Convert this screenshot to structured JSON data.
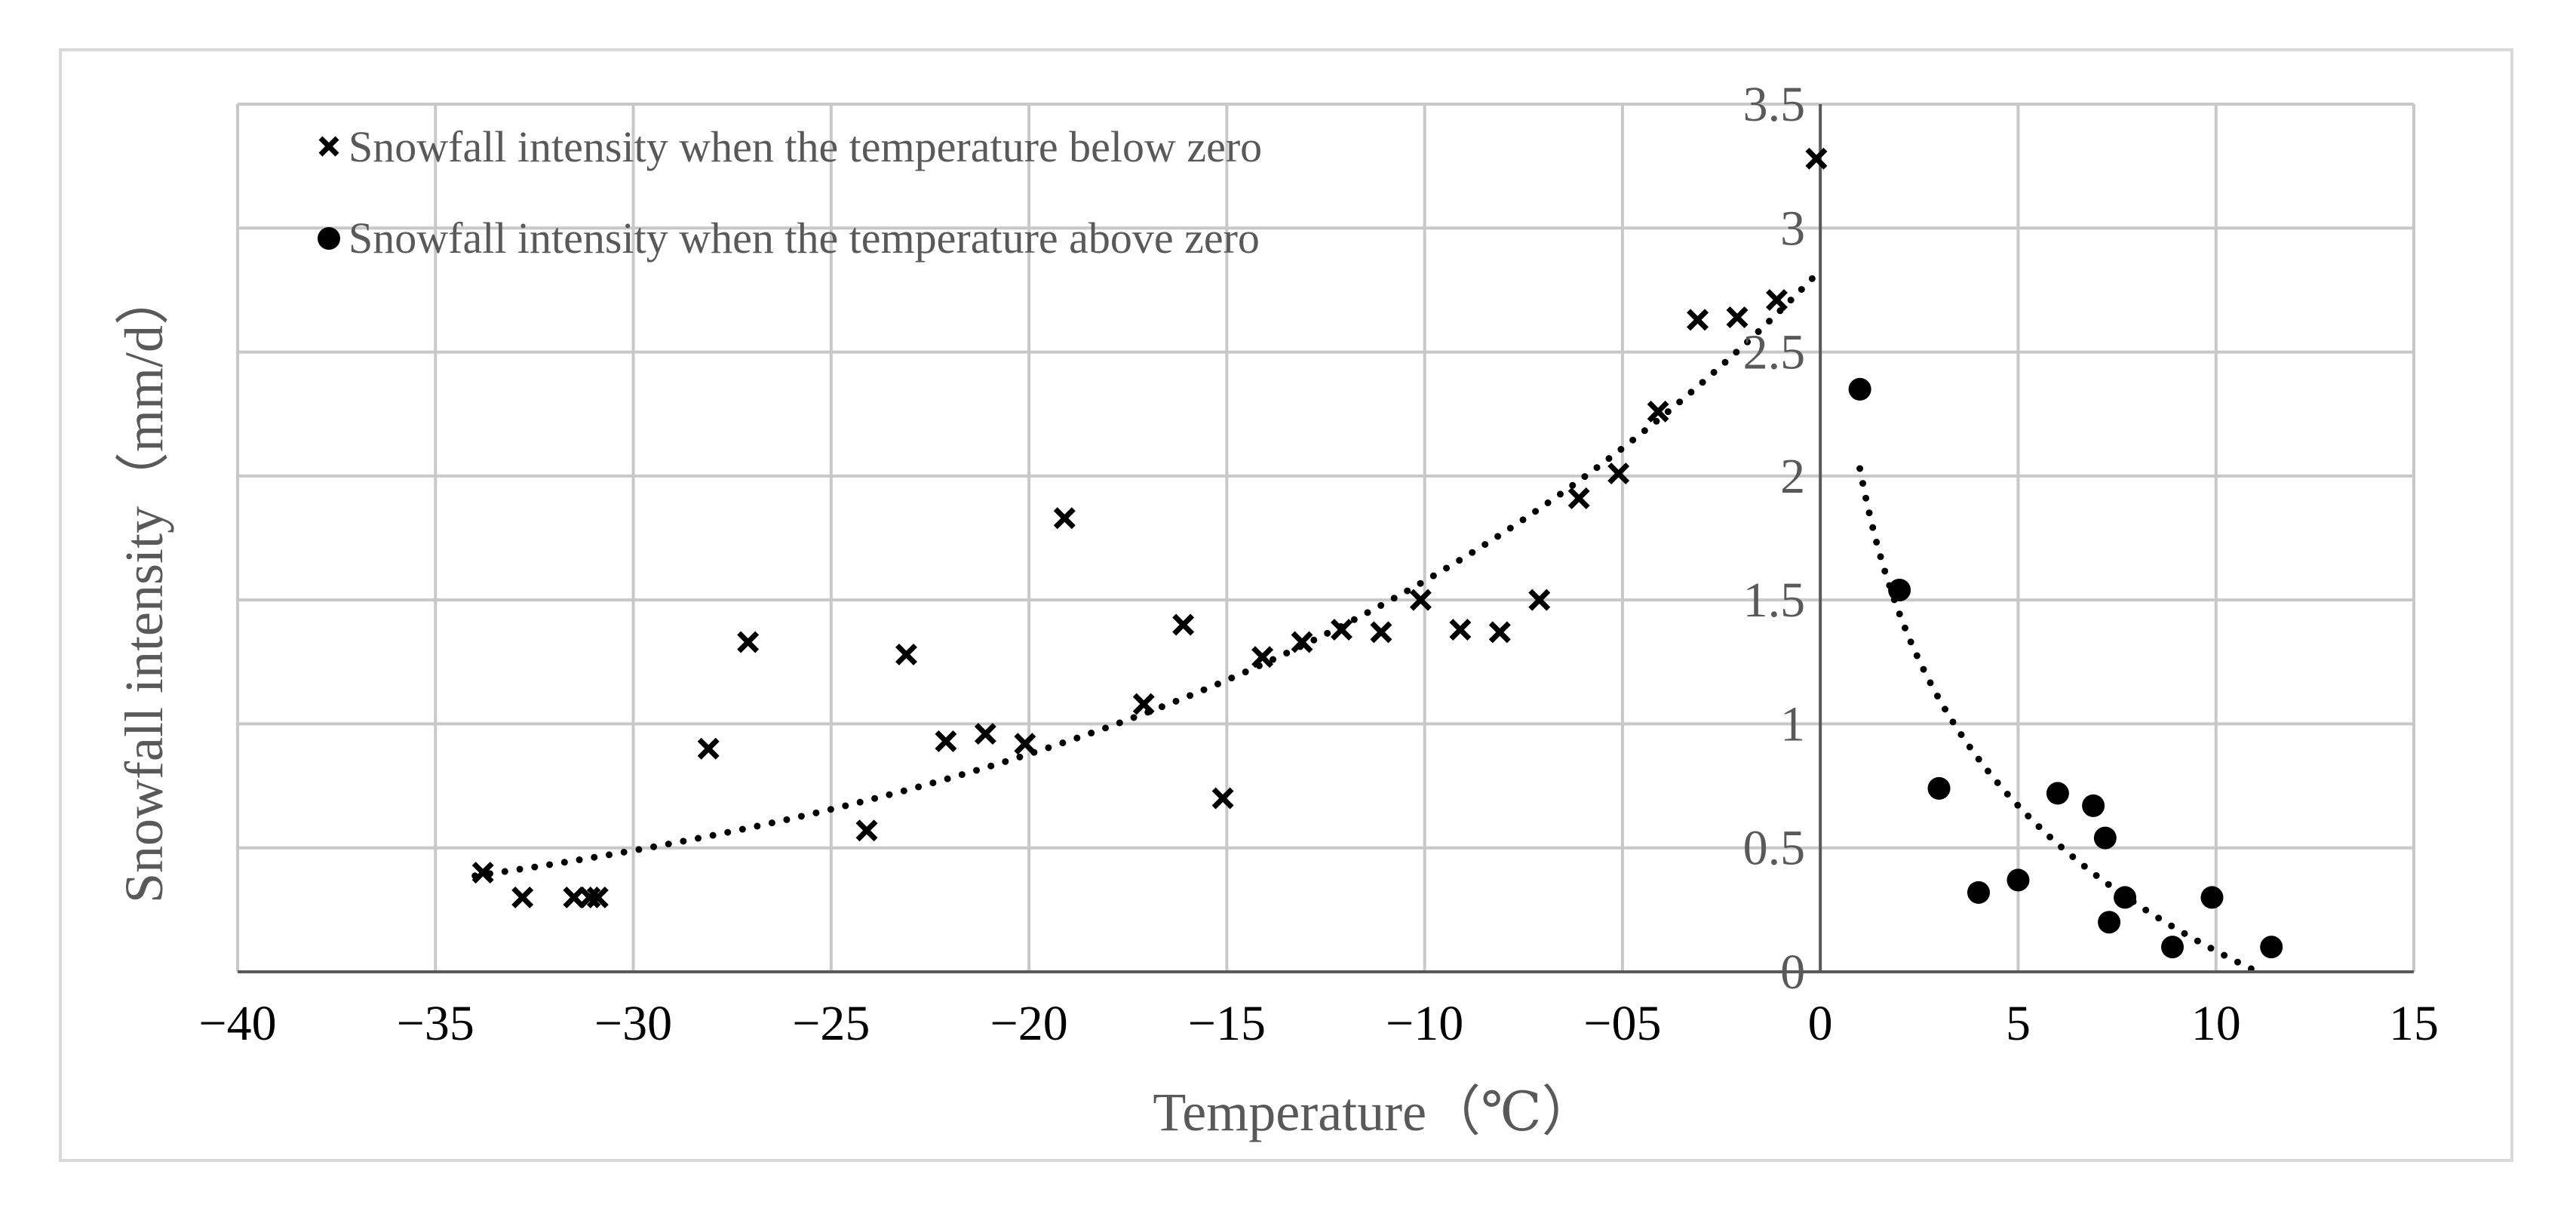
{
  "chart_data": {
    "type": "scatter",
    "title": "",
    "xlabel": "Temperature（℃）",
    "ylabel": "Snowfall intensity（mm/d）",
    "xlim": [
      -40,
      15
    ],
    "ylim": [
      0,
      3.5
    ],
    "x_ticks": [
      -40,
      -35,
      -30,
      -25,
      -20,
      -15,
      -10,
      -5,
      0,
      5,
      10,
      15
    ],
    "x_tick_labels": [
      "−40",
      "−35",
      "−30",
      "−25",
      "−20",
      "−15",
      "−10",
      "−05",
      "0",
      "5",
      "10",
      "15"
    ],
    "y_ticks": [
      0,
      0.5,
      1,
      1.5,
      2,
      2.5,
      3,
      3.5
    ],
    "y_tick_labels": [
      "0",
      "0.5",
      "1",
      "1.5",
      "2",
      "2.5",
      "3",
      "3.5"
    ],
    "grid": true,
    "legend_position": "top-left",
    "series": [
      {
        "name": "Snowfall intensity when the temperature below zero",
        "marker": "x",
        "color": "#000000",
        "points": [
          [
            -33.8,
            0.4
          ],
          [
            -32.8,
            0.3
          ],
          [
            -31.5,
            0.3
          ],
          [
            -31.1,
            0.3
          ],
          [
            -30.9,
            0.3
          ],
          [
            -28.1,
            0.9
          ],
          [
            -27.1,
            1.33
          ],
          [
            -24.1,
            0.57
          ],
          [
            -23.1,
            1.28
          ],
          [
            -22.1,
            0.93
          ],
          [
            -21.1,
            0.96
          ],
          [
            -20.1,
            0.92
          ],
          [
            -19.1,
            1.83
          ],
          [
            -17.1,
            1.08
          ],
          [
            -16.1,
            1.4
          ],
          [
            -15.1,
            0.7
          ],
          [
            -14.1,
            1.27
          ],
          [
            -13.1,
            1.33
          ],
          [
            -12.1,
            1.38
          ],
          [
            -11.1,
            1.37
          ],
          [
            -10.1,
            1.5
          ],
          [
            -9.1,
            1.38
          ],
          [
            -8.1,
            1.37
          ],
          [
            -7.1,
            1.5
          ],
          [
            -6.1,
            1.91
          ],
          [
            -5.1,
            2.01
          ],
          [
            -4.1,
            2.26
          ],
          [
            -3.1,
            2.63
          ],
          [
            -2.1,
            2.64
          ],
          [
            -1.1,
            2.71
          ],
          [
            -0.1,
            3.28
          ]
        ],
        "trendline": {
          "type": "exponential",
          "a": 2.83,
          "b": 0.0585,
          "x_range": [
            -34,
            0
          ]
        }
      },
      {
        "name": "Snowfall intensity when the temperature above zero",
        "marker": "circle",
        "color": "#000000",
        "points": [
          [
            1.0,
            2.35
          ],
          [
            2.0,
            1.54
          ],
          [
            3.0,
            0.74
          ],
          [
            4.0,
            0.32
          ],
          [
            5.0,
            0.37
          ],
          [
            6.0,
            0.72
          ],
          [
            6.9,
            0.67
          ],
          [
            7.2,
            0.54
          ],
          [
            7.3,
            0.2
          ],
          [
            7.7,
            0.3
          ],
          [
            8.9,
            0.1
          ],
          [
            9.9,
            0.3
          ],
          [
            11.4,
            0.1
          ]
        ],
        "trendline": {
          "type": "logarithmic",
          "a": 2.03,
          "b": -0.845,
          "x_range": [
            1,
            11
          ]
        }
      }
    ]
  }
}
